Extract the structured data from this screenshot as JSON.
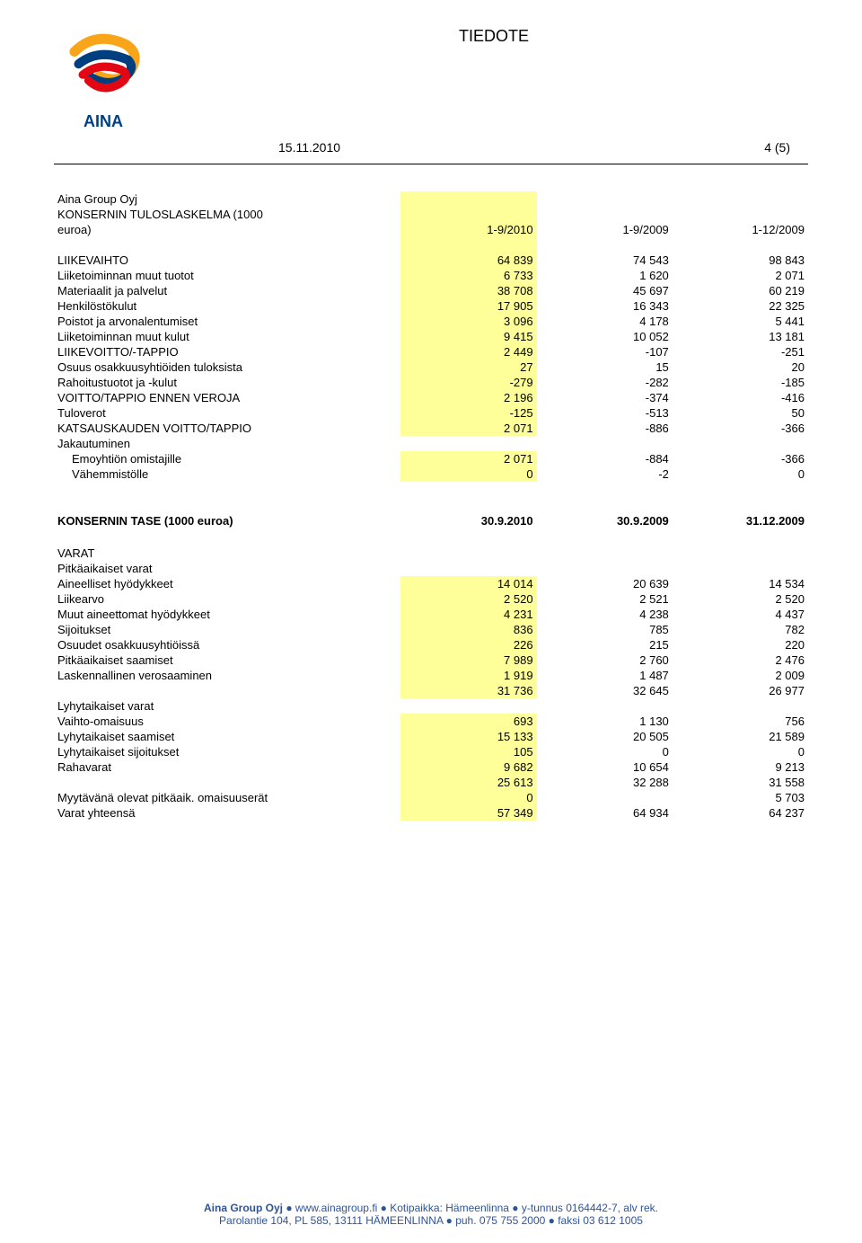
{
  "header": {
    "doc_title": "TIEDOTE",
    "date": "15.11.2010",
    "page_label": "4 (5)",
    "logo_text": "AINA"
  },
  "colors": {
    "highlight_bg": "#ffff99",
    "footer_text": "#2f5496",
    "rule_color": "#000000",
    "logo_palette": [
      "#f9a51a",
      "#003f7f",
      "#e30613"
    ]
  },
  "income_statement": {
    "head_label1": "Aina Group Oyj",
    "head_label2": "KONSERNIN TULOSLASKELMA (1000",
    "head_label3": "euroa)",
    "col_headers": [
      "1-9/2010",
      "1-9/2009",
      "1-12/2009"
    ],
    "rows": [
      {
        "label": "LIIKEVAIHTO",
        "v": [
          "64 839",
          "74 543",
          "98 843"
        ],
        "hl0": true,
        "blank_before": true
      },
      {
        "label": "Liiketoiminnan muut tuotot",
        "v": [
          "6 733",
          "1 620",
          "2 071"
        ],
        "hl0": true
      },
      {
        "label": "Materiaalit ja palvelut",
        "v": [
          "38 708",
          "45 697",
          "60 219"
        ],
        "hl0": true
      },
      {
        "label": "Henkilöstökulut",
        "v": [
          "17 905",
          "16 343",
          "22 325"
        ],
        "hl0": true
      },
      {
        "label": "Poistot ja arvonalentumiset",
        "v": [
          "3 096",
          "4 178",
          "5 441"
        ],
        "hl0": true
      },
      {
        "label": "Liiketoiminnan muut kulut",
        "v": [
          "9 415",
          "10 052",
          "13 181"
        ],
        "hl0": true
      },
      {
        "label": "LIIKEVOITTO/-TAPPIO",
        "v": [
          "2 449",
          "-107",
          "-251"
        ],
        "hl0": true
      },
      {
        "label": "Osuus osakkuusyhtiöiden tuloksista",
        "v": [
          "27",
          "15",
          "20"
        ],
        "hl0": true
      },
      {
        "label": "Rahoitustuotot ja -kulut",
        "v": [
          "-279",
          "-282",
          "-185"
        ],
        "hl0": true
      },
      {
        "label": "VOITTO/TAPPIO ENNEN VEROJA",
        "v": [
          "2 196",
          "-374",
          "-416"
        ],
        "hl0": true
      },
      {
        "label": "Tuloverot",
        "v": [
          "-125",
          "-513",
          "50"
        ],
        "hl0": true
      },
      {
        "label": "KATSAUSKAUDEN VOITTO/TAPPIO",
        "v": [
          "2 071",
          "-886",
          "-366"
        ],
        "hl0": true
      },
      {
        "label": "Jakautuminen",
        "v": [
          "",
          "",
          ""
        ]
      },
      {
        "label": "Emoyhtiön omistajille",
        "v": [
          "2 071",
          "-884",
          "-366"
        ],
        "hl0": true,
        "indent": true
      },
      {
        "label": "Vähemmistölle",
        "v": [
          "0",
          "-2",
          "0"
        ],
        "hl0": true,
        "indent": true
      }
    ]
  },
  "balance_sheet": {
    "title": "KONSERNIN TASE  (1000 euroa)",
    "col_headers": [
      "30.9.2010",
      "30.9.2009",
      "31.12.2009"
    ],
    "section1_label": "VARAT",
    "subsection1_label": "Pitkäaikaiset varat",
    "rows1": [
      {
        "label": "Aineelliset hyödykkeet",
        "v": [
          "14 014",
          "20 639",
          "14 534"
        ],
        "hl0": true
      },
      {
        "label": "Liikearvo",
        "v": [
          "2 520",
          "2 521",
          "2 520"
        ],
        "hl0": true
      },
      {
        "label": "Muut aineettomat hyödykkeet",
        "v": [
          "4 231",
          "4 238",
          "4 437"
        ],
        "hl0": true
      },
      {
        "label": "Sijoitukset",
        "v": [
          "836",
          "785",
          "782"
        ],
        "hl0": true
      },
      {
        "label": "Osuudet osakkuusyhtiöissä",
        "v": [
          "226",
          "215",
          "220"
        ],
        "hl0": true
      },
      {
        "label": "Pitkäaikaiset saamiset",
        "v": [
          "7 989",
          "2 760",
          "2 476"
        ],
        "hl0": true
      },
      {
        "label": "Laskennallinen verosaaminen",
        "v": [
          "1 919",
          "1 487",
          "2 009"
        ],
        "hl0": true
      },
      {
        "label": "",
        "v": [
          "31 736",
          "32 645",
          "26 977"
        ],
        "hl0": true
      }
    ],
    "subsection2_label": "Lyhytaikaiset varat",
    "rows2": [
      {
        "label": "Vaihto-omaisuus",
        "v": [
          "693",
          "1 130",
          "756"
        ],
        "hl0": true
      },
      {
        "label": "Lyhytaikaiset saamiset",
        "v": [
          "15 133",
          "20 505",
          "21 589"
        ],
        "hl0": true
      },
      {
        "label": "Lyhytaikaiset sijoitukset",
        "v": [
          "105",
          "0",
          "0"
        ],
        "hl0": true
      },
      {
        "label": "Rahavarat",
        "v": [
          "9 682",
          "10 654",
          "9 213"
        ],
        "hl0": true
      },
      {
        "label": "",
        "v": [
          "25 613",
          "32 288",
          "31 558"
        ],
        "hl0": true
      },
      {
        "label": "Myytävänä olevat pitkäaik. omaisuuserät",
        "v": [
          "0",
          "",
          "5 703"
        ],
        "hl0": true
      },
      {
        "label": "Varat yhteensä",
        "v": [
          "57 349",
          "64 934",
          "64 237"
        ],
        "hl0": true
      }
    ]
  },
  "footer": {
    "line1_bold": "Aina Group Oyj",
    "line1_rest": " ● www.ainagroup.fi ● Kotipaikka: Hämeenlinna ● y-tunnus 0164442-7, alv rek.",
    "line2": "Parolantie 104, PL 585, 13111 HÄMEENLINNA ● puh. 075 755 2000 ● faksi 03 612 1005"
  }
}
